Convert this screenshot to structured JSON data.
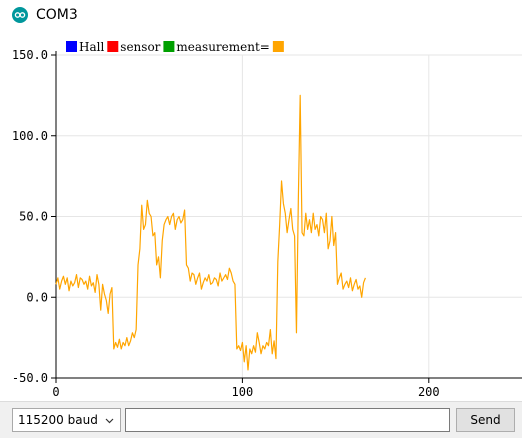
{
  "window": {
    "title": "COM3",
    "icon": "arduino-icon"
  },
  "plot": {
    "legend": [
      {
        "label": "Hall",
        "color": "#0000ff"
      },
      {
        "label": "sensor",
        "color": "#ff0000"
      },
      {
        "label": "measurement=",
        "color": "#00a000"
      },
      {
        "label": "",
        "color": "#ffa500"
      }
    ]
  },
  "chart_data": {
    "type": "line",
    "title": "",
    "xlabel": "",
    "ylabel": "",
    "xlim": [
      0,
      250
    ],
    "ylim": [
      -50,
      150
    ],
    "x_ticks": [
      "0",
      "100",
      "200"
    ],
    "y_ticks": [
      "-50.0",
      "0.0",
      "50.0",
      "100.0",
      "150.0"
    ],
    "grid": true,
    "legend_position": "top-left",
    "series": [
      {
        "color": "#ffa500",
        "values": [
          8,
          12,
          5,
          10,
          13,
          8,
          12,
          4,
          10,
          7,
          9,
          14,
          6,
          12,
          11,
          8,
          10,
          5,
          13,
          7,
          9,
          3,
          14,
          8,
          -8,
          8,
          2,
          -2,
          -10,
          2,
          6,
          -32,
          -28,
          -31,
          -26,
          -32,
          -28,
          -30,
          -25,
          -30,
          -27,
          -22,
          -25,
          -20,
          20,
          30,
          57,
          42,
          45,
          60,
          52,
          50,
          38,
          40,
          20,
          25,
          12,
          35,
          45,
          48,
          50,
          45,
          50,
          52,
          42,
          48,
          50,
          46,
          48,
          54,
          20,
          18,
          10,
          15,
          14,
          8,
          12,
          15,
          5,
          9,
          12,
          10,
          14,
          8,
          9,
          12,
          11,
          7,
          15,
          10,
          12,
          14,
          11,
          18,
          15,
          10,
          8,
          -32,
          -30,
          -33,
          -28,
          -40,
          -30,
          -45,
          -32,
          -35,
          -30,
          -34,
          -22,
          -28,
          -35,
          -30,
          -32,
          -28,
          -30,
          -20,
          -35,
          -27,
          -38,
          22,
          45,
          72,
          58,
          52,
          40,
          48,
          55,
          42,
          38,
          -22,
          60,
          125,
          40,
          38,
          52,
          42,
          48,
          40,
          52,
          42,
          45,
          38,
          50,
          48,
          40,
          52,
          30,
          35,
          50,
          32,
          40,
          8,
          12,
          15,
          5,
          8,
          10,
          6,
          12,
          4,
          8,
          11,
          5,
          7,
          0,
          9,
          12
        ]
      }
    ]
  },
  "footer": {
    "baud_value": "115200 baud",
    "input_value": "",
    "send_label": "Send"
  }
}
